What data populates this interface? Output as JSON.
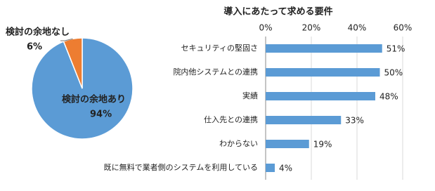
{
  "chart_data": [
    {
      "type": "pie",
      "categories": [
        "検討の余地あり",
        "検討の余地なし"
      ],
      "values": [
        94,
        6
      ],
      "value_labels": [
        "94%",
        "6%"
      ],
      "colors": [
        "#5b9bd5",
        "#ed7d31"
      ]
    },
    {
      "type": "bar",
      "orientation": "horizontal",
      "title": "導入にあたって求める要件",
      "categories": [
        "セキュリティの堅固さ",
        "院内他システムとの連携",
        "実績",
        "仕入先との連携",
        "わからない",
        "既に無料で業者側のシステムを利用している"
      ],
      "values": [
        51,
        50,
        48,
        33,
        19,
        4
      ],
      "value_labels": [
        "51%",
        "50%",
        "48%",
        "33%",
        "19%",
        "4%"
      ],
      "color": "#5b9bd5",
      "xlim": [
        0,
        60
      ],
      "xticks": [
        {
          "value": 0,
          "label": "0%"
        },
        {
          "value": 20,
          "label": "20%"
        },
        {
          "value": 40,
          "label": "40%"
        },
        {
          "value": 60,
          "label": "60%"
        }
      ],
      "grid": true
    }
  ]
}
